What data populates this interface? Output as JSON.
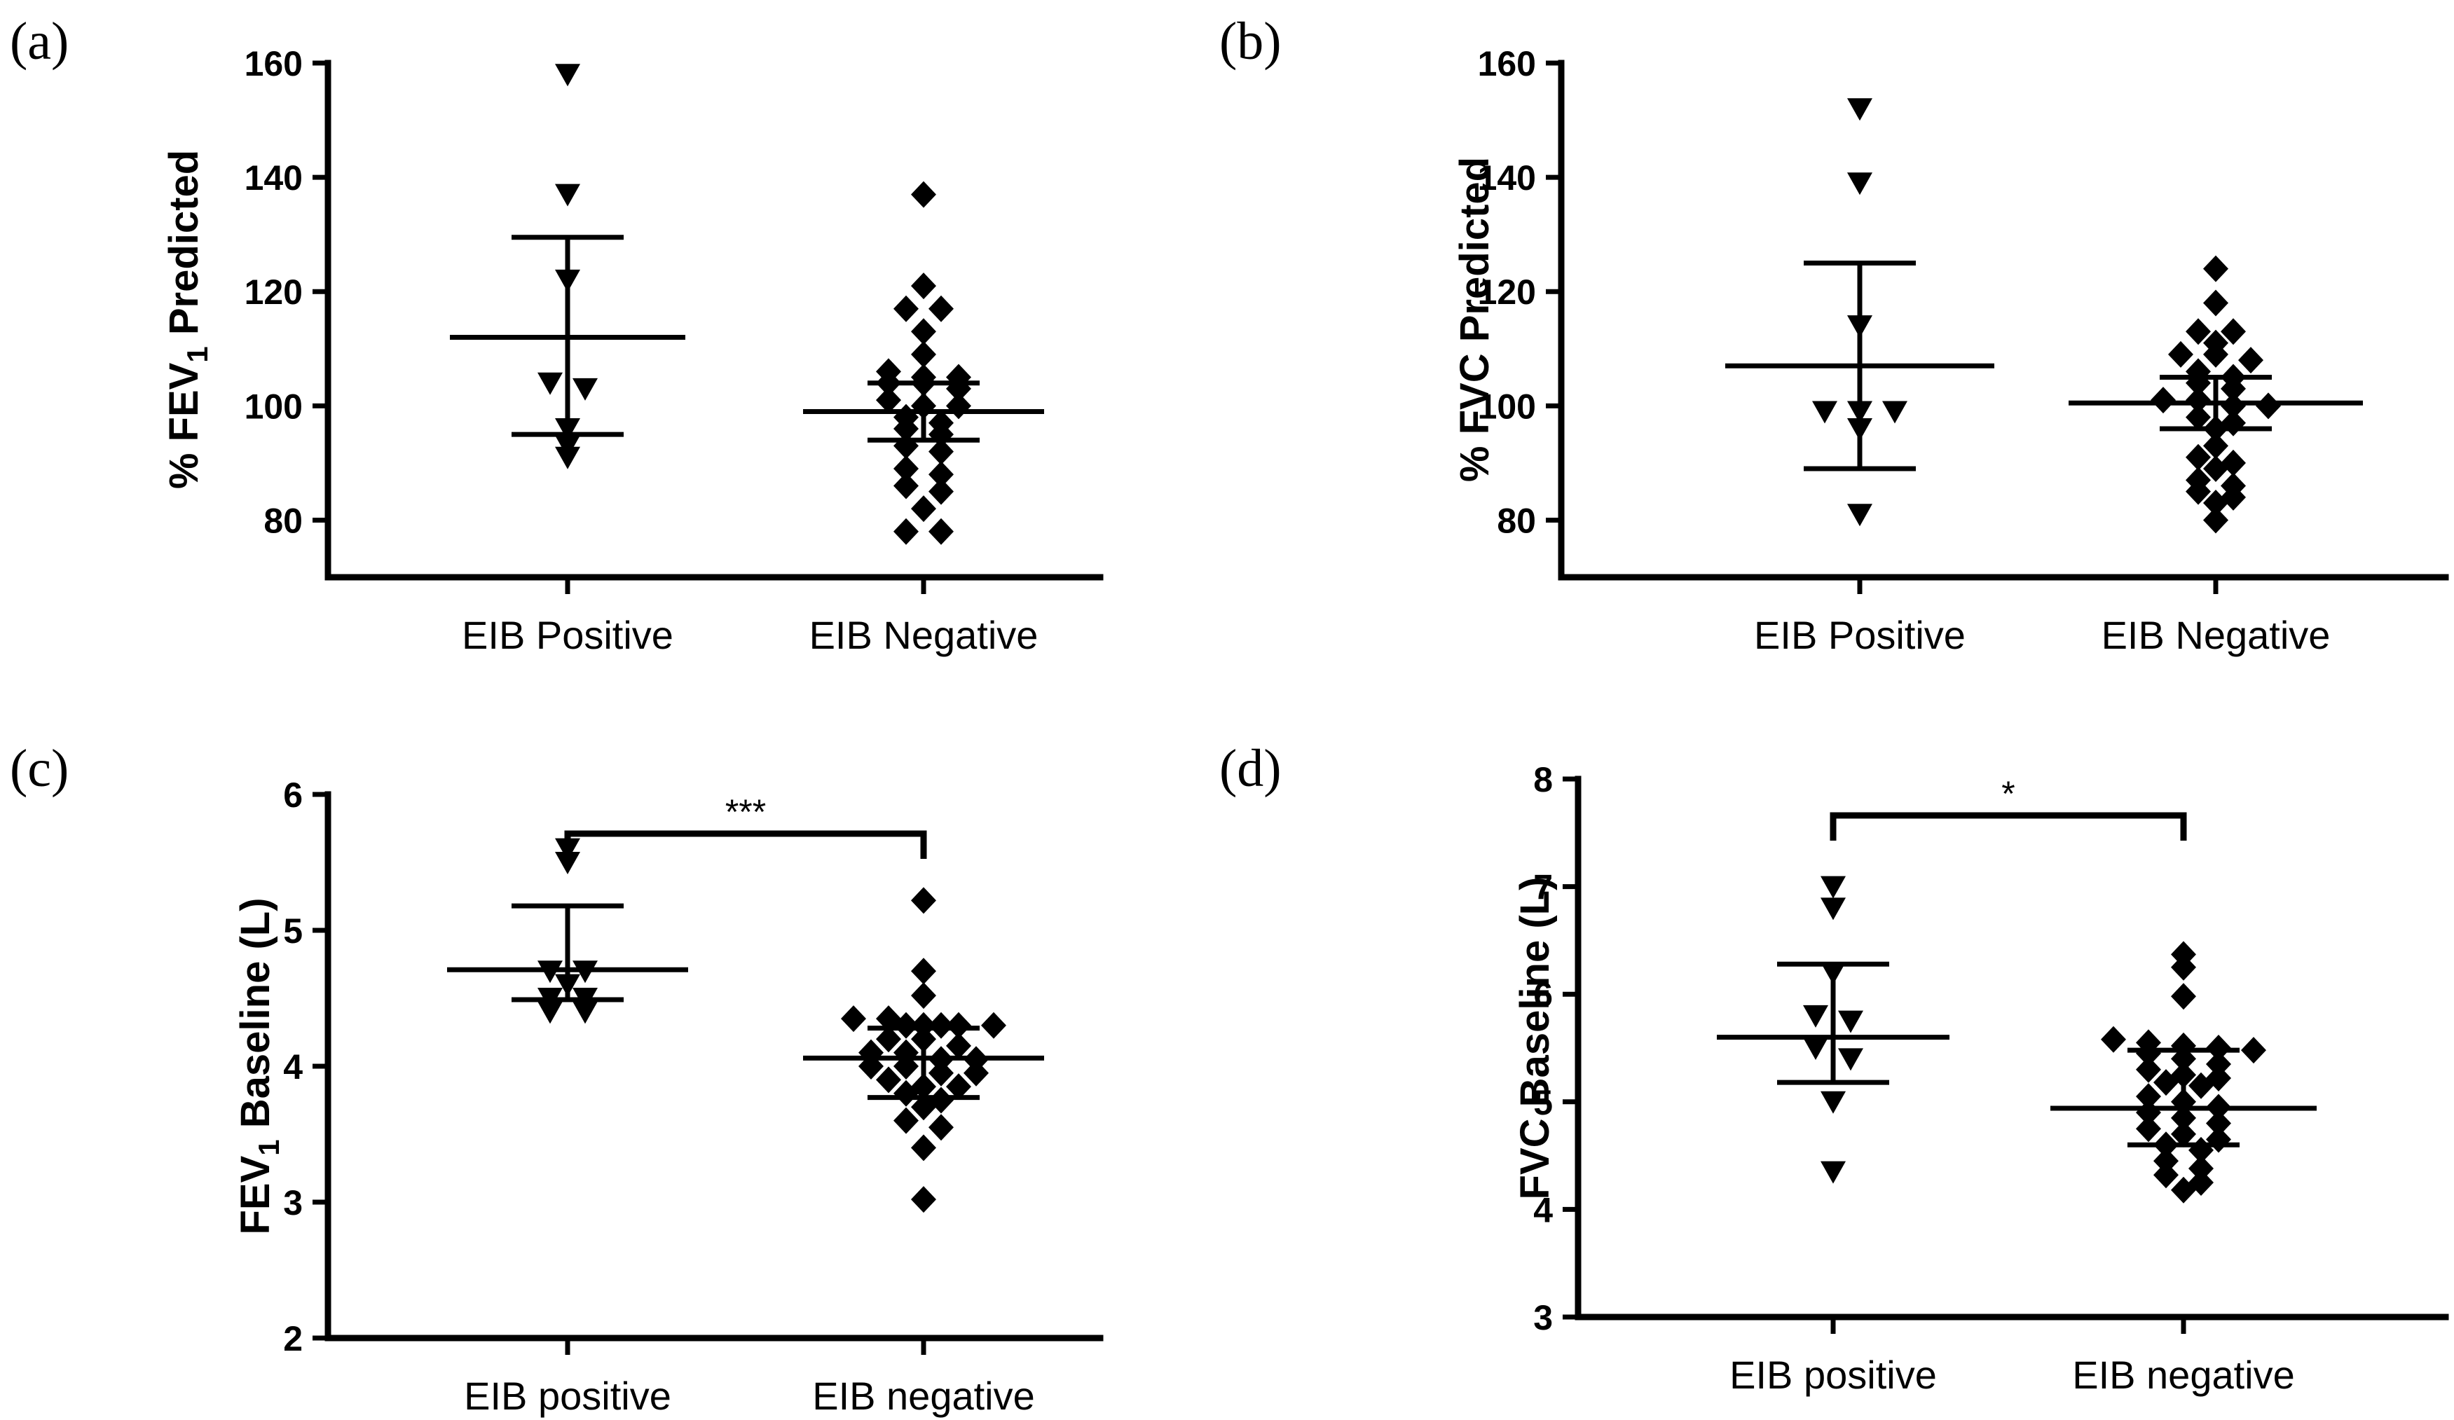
{
  "chart_data": [
    {
      "type": "scatter",
      "panel_label": "(a)",
      "ylabel": "% FEV",
      "ylabel_sub": "1",
      "ylabel_suffix": " Predicted",
      "ylim": [
        70,
        160
      ],
      "yticks": [
        80,
        100,
        120,
        140,
        160
      ],
      "categories": [
        "EIB Positive",
        "EIB Negative"
      ],
      "series": [
        {
          "name": "EIB Positive",
          "marker": "triangle-down",
          "values": [
            158,
            137,
            122,
            104,
            103,
            96,
            93,
            91
          ],
          "mean": 112,
          "sd_low": 95,
          "sd_high": 129.5
        },
        {
          "name": "EIB Negative",
          "marker": "diamond",
          "values": [
            137,
            121,
            117,
            117,
            113,
            109,
            105,
            105,
            106,
            104,
            103,
            104,
            100,
            100,
            101,
            98,
            97,
            96,
            95,
            93,
            92,
            89,
            88,
            86,
            85,
            82,
            78,
            78
          ],
          "mean": 99,
          "sd_low": 94,
          "sd_high": 104
        }
      ],
      "significance": null
    },
    {
      "type": "scatter",
      "panel_label": "(b)",
      "ylabel": "% FVC Predicted",
      "ylim": [
        70,
        160
      ],
      "yticks": [
        80,
        100,
        120,
        140,
        160
      ],
      "categories": [
        "EIB Positive",
        "EIB Negative"
      ],
      "series": [
        {
          "name": "EIB Positive",
          "marker": "triangle-down",
          "values": [
            152,
            139,
            114,
            99,
            99,
            99,
            96,
            81
          ],
          "mean": 107,
          "sd_low": 89,
          "sd_high": 125
        },
        {
          "name": "EIB Negative",
          "marker": "diamond",
          "values": [
            124,
            118,
            113,
            113,
            111,
            109,
            109,
            108,
            106,
            105,
            104,
            103,
            101,
            101,
            100,
            100,
            98,
            97,
            96,
            93,
            91,
            90,
            89,
            87,
            86,
            85,
            84,
            83,
            80
          ],
          "mean": 100.5,
          "sd_low": 96,
          "sd_high": 105
        }
      ],
      "significance": null
    },
    {
      "type": "scatter",
      "panel_label": "(c)",
      "ylabel": "FEV",
      "ylabel_sub": "1",
      "ylabel_suffix": " Baseline (L)",
      "ylim": [
        2,
        6
      ],
      "yticks": [
        2,
        3,
        4,
        5,
        6
      ],
      "categories": [
        "EIB positive",
        "EIB negative"
      ],
      "series": [
        {
          "name": "EIB positive",
          "marker": "triangle-down",
          "values": [
            5.6,
            5.5,
            4.7,
            4.7,
            4.6,
            4.5,
            4.5,
            4.4,
            4.4
          ],
          "mean": 4.71,
          "sd_low": 4.49,
          "sd_high": 5.18
        },
        {
          "name": "EIB negative",
          "marker": "diamond",
          "values": [
            5.22,
            4.7,
            4.52,
            4.35,
            4.35,
            4.3,
            4.3,
            4.3,
            4.3,
            4.3,
            4.2,
            4.2,
            4.15,
            4.1,
            4.1,
            4.05,
            4.05,
            4.0,
            4.0,
            3.95,
            3.95,
            3.9,
            3.85,
            3.85,
            3.8,
            3.75,
            3.7,
            3.6,
            3.55,
            3.4,
            3.02
          ],
          "mean": 4.06,
          "sd_low": 3.77,
          "sd_high": 4.28
        }
      ],
      "significance": "***"
    },
    {
      "type": "scatter",
      "panel_label": "(d)",
      "ylabel": "FVC Baseline (L)",
      "ylim": [
        3,
        8
      ],
      "yticks": [
        3,
        4,
        5,
        6,
        7,
        8
      ],
      "categories": [
        "EIB positive",
        "EIB negative"
      ],
      "series": [
        {
          "name": "EIB positive",
          "marker": "triangle-down",
          "values": [
            7.0,
            6.8,
            6.2,
            5.8,
            5.75,
            5.5,
            5.4,
            5.0,
            4.35
          ],
          "mean": 5.6,
          "sd_low": 5.18,
          "sd_high": 6.28
        },
        {
          "name": "EIB negative",
          "marker": "diamond",
          "values": [
            6.37,
            6.25,
            5.98,
            5.58,
            5.55,
            5.52,
            5.5,
            5.48,
            5.45,
            5.4,
            5.35,
            5.3,
            5.25,
            5.22,
            5.18,
            5.15,
            5.05,
            5.0,
            4.95,
            4.9,
            4.85,
            4.8,
            4.75,
            4.7,
            4.65,
            4.6,
            4.55,
            4.45,
            4.38,
            4.32,
            4.25,
            4.18
          ],
          "mean": 4.94,
          "sd_low": 4.6,
          "sd_high": 5.48
        }
      ],
      "significance": "*"
    }
  ]
}
